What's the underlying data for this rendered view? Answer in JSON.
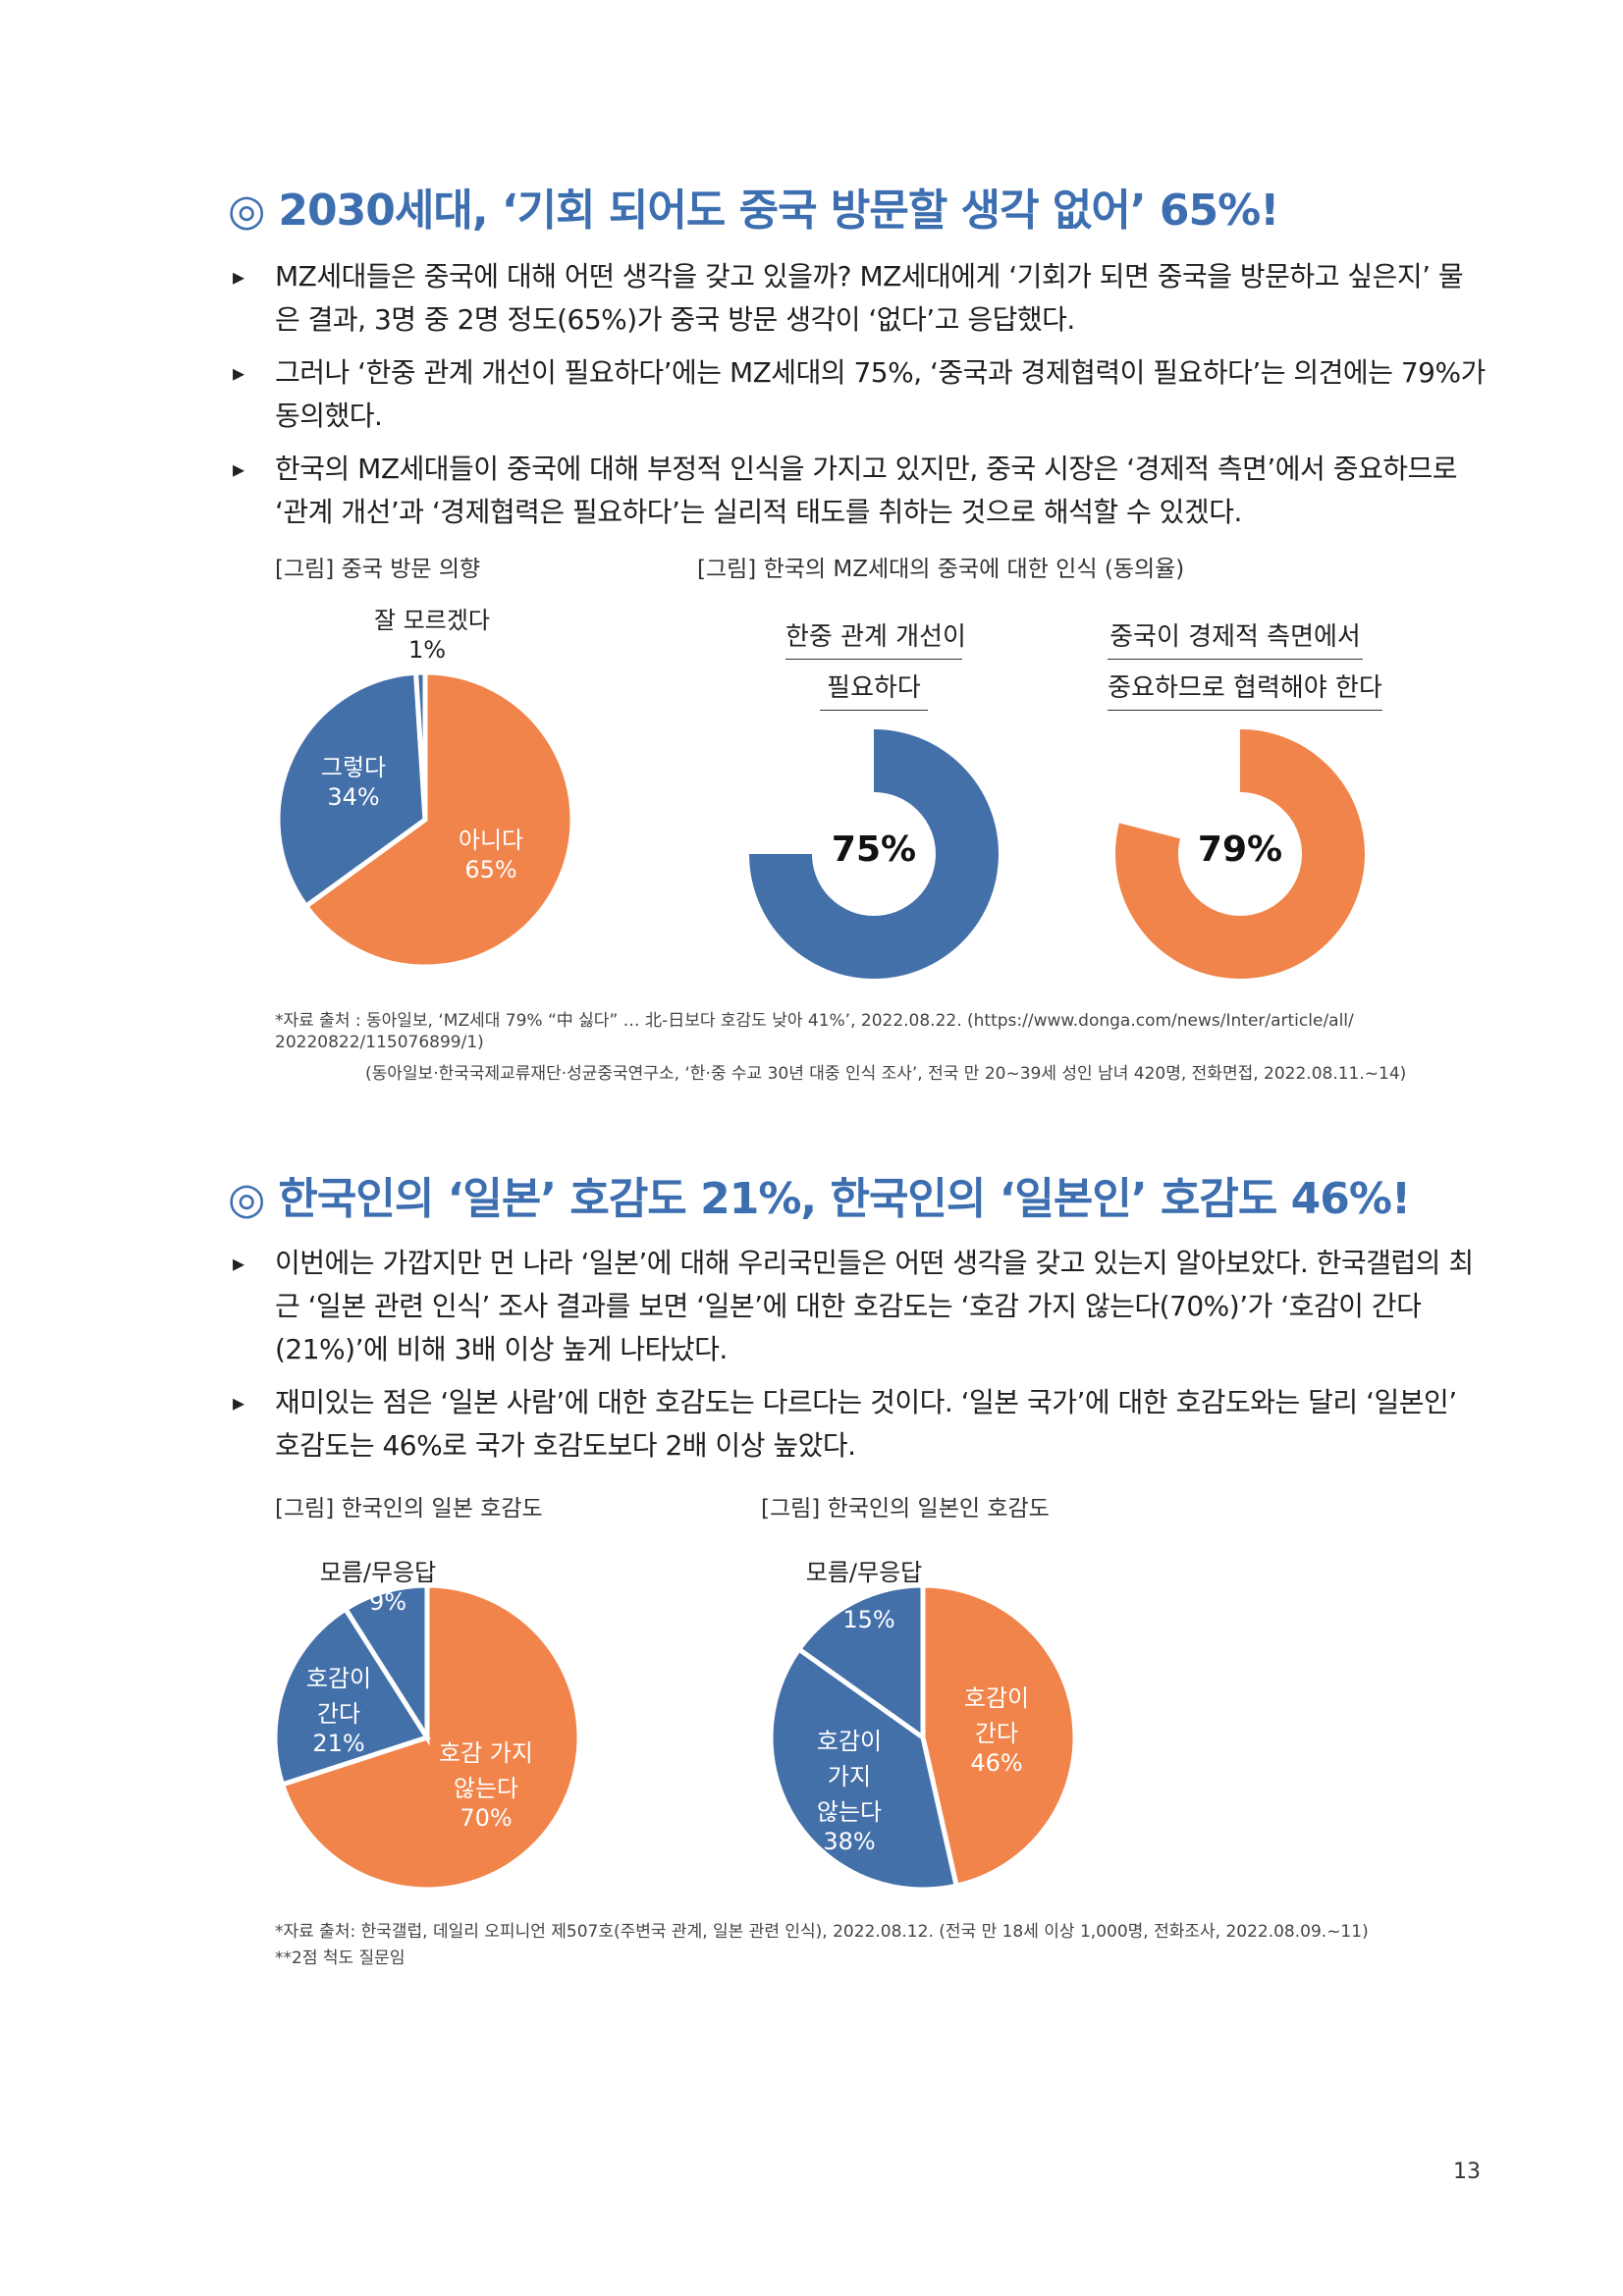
{
  "colors": {
    "blue": "#4470aa",
    "orange": "#f0844a",
    "heading": "#3d6fb0"
  },
  "section1": {
    "mark": "◎",
    "title": "2030세대, ‘기회 되어도 중국 방문할 생각 없어’ 65%!",
    "bullets": [
      "MZ세대들은 중국에 대해 어떤 생각을 갖고 있을까? MZ세대에게 ‘기회가 되면 중국을 방문하고 싶은지’ 물은 결과, 3명 중 2명 정도(65%)가 중국 방문 생각이 ‘없다’고 응답했다.",
      "그러나 ‘한중 관계 개선이 필요하다’에는 MZ세대의 75%, ‘중국과 경제협력이 필요하다’는 의견에는 79%가 동의했다.",
      "한국의 MZ세대들이 중국에 대해 부정적 인식을 가지고 있지만, 중국 시장은 ‘경제적 측면’에서 중요하므로 ‘관계 개선’과 ‘경제협력은 필요하다’는 실리적 태도를 취하는 것으로 해석할 수 있겠다."
    ],
    "fig1_title": "[그림] 중국 방문 의향",
    "fig2_title": "[그림] 한국의 MZ세대의 중국에 대한 인식 (동의율)",
    "source_line1": "*자료 출처 : 동아일보, ‘MZ세대 79% “中 싫다” … 北-日보다 호감도 낮아 41%’, 2022.08.22. (https://www.donga.com/news/Inter/article/all/",
    "source_line2": "20220822/115076899/1)",
    "source_line3": "(동아일보·한국국제교류재단·성균중국연구소, ‘한·중 수교 30년 대중 인식 조사’, 전국 만 20~39세 성인 남녀 420명, 전화면접, 2022.08.11.~14)"
  },
  "donuts": [
    {
      "label_line1": "한중 관계 개선이",
      "label_line2": "필요하다",
      "value_text": "75%"
    },
    {
      "label_line1": "중국이 경제적 측면에서",
      "label_line2": "중요하므로 협력해야 한다",
      "value_text": "79%"
    }
  ],
  "section2": {
    "mark": "◎",
    "title": "한국인의 ‘일본’ 호감도 21%, 한국인의 ‘일본인’ 호감도 46%!",
    "bullets": [
      "이번에는 가깝지만 먼 나라 ‘일본’에 대해 우리국민들은 어떤 생각을 갖고 있는지 알아보았다. 한국갤럽의 최근 ‘일본 관련 인식’ 조사 결과를 보면 ‘일본’에 대한 호감도는 ‘호감 가지 않는다(70%)’가 ‘호감이 간다(21%)’에 비해 3배 이상 높게 나타났다.",
      "재미있는 점은 ‘일본 사람’에 대한 호감도는 다르다는 것이다. ‘일본 국가’에 대한 호감도와는 달리 ‘일본인’ 호감도는 46%로 국가 호감도보다 2배 이상 높았다."
    ],
    "fig1_title": "[그림] 한국인의 일본 호감도",
    "fig2_title": "[그림] 한국인의 일본인 호감도",
    "source_line1": "*자료 출처: 한국갤럽, 데일리 오피니언 제507호(주변국 관계, 일본 관련 인식), 2022.08.12. (전국 만 18세 이상 1,000명, 전화조사, 2022.08.09.~11)",
    "source_line2": "**2점 척도 질문임"
  },
  "chart_data": [
    {
      "type": "pie",
      "title": "[그림] 중국 방문 의향",
      "slices": [
        {
          "label": "아니다",
          "value": 65,
          "value_text": "65%",
          "color": "#f0844a"
        },
        {
          "label": "그렇다",
          "value": 34,
          "value_text": "34%",
          "color": "#4470aa"
        },
        {
          "label": "잘 모르겠다",
          "value": 1,
          "value_text": "1%",
          "color": "#4470aa"
        }
      ]
    },
    {
      "type": "pie",
      "title": "[그림] 한국의 MZ세대의 중국에 대한 인식 (동의율)",
      "categories": [
        "한중 관계 개선이 필요하다",
        "중국이 경제적 측면에서 중요하므로 협력해야 한다"
      ],
      "values": [
        75,
        79
      ]
    },
    {
      "type": "pie",
      "title": "[그림] 한국인의 일본 호감도",
      "slices": [
        {
          "label": "호감 가지 않는다",
          "value": 70,
          "value_text": "70%",
          "color": "#f0844a"
        },
        {
          "label": "호감이 간다",
          "value": 21,
          "value_text": "21%",
          "color": "#4470aa"
        },
        {
          "label": "모름/무응답",
          "value": 9,
          "value_text": "9%",
          "color": "#4470aa"
        }
      ]
    },
    {
      "type": "pie",
      "title": "[그림] 한국인의 일본인 호감도",
      "slices": [
        {
          "label": "호감이 간다",
          "value": 46,
          "value_text": "46%",
          "color": "#f0844a"
        },
        {
          "label": "호감이 가지 않는다",
          "value": 38,
          "value_text": "38%",
          "color": "#4470aa"
        },
        {
          "label": "모름/무응답",
          "value": 15,
          "value_text": "15%",
          "color": "#4470aa"
        }
      ]
    }
  ],
  "labels": {
    "pie1_dunno_l1": "잘 모르겠다",
    "pie1_yes_l1": "그렇다",
    "pie1_no_l1": "아니다",
    "pie3_na_l1": "모름/무응답",
    "pie3_yes_l1": "호감이",
    "pie3_yes_l2": "간다",
    "pie3_no_l1": "호감 가지",
    "pie3_no_l2": "않는다",
    "pie4_na_l1": "모름/무응답",
    "pie4_yes_l1": "호감이",
    "pie4_yes_l2": "간다",
    "pie4_no_l1": "호감이",
    "pie4_no_l2": "가지",
    "pie4_no_l3": "않는다"
  },
  "page_number": "13"
}
